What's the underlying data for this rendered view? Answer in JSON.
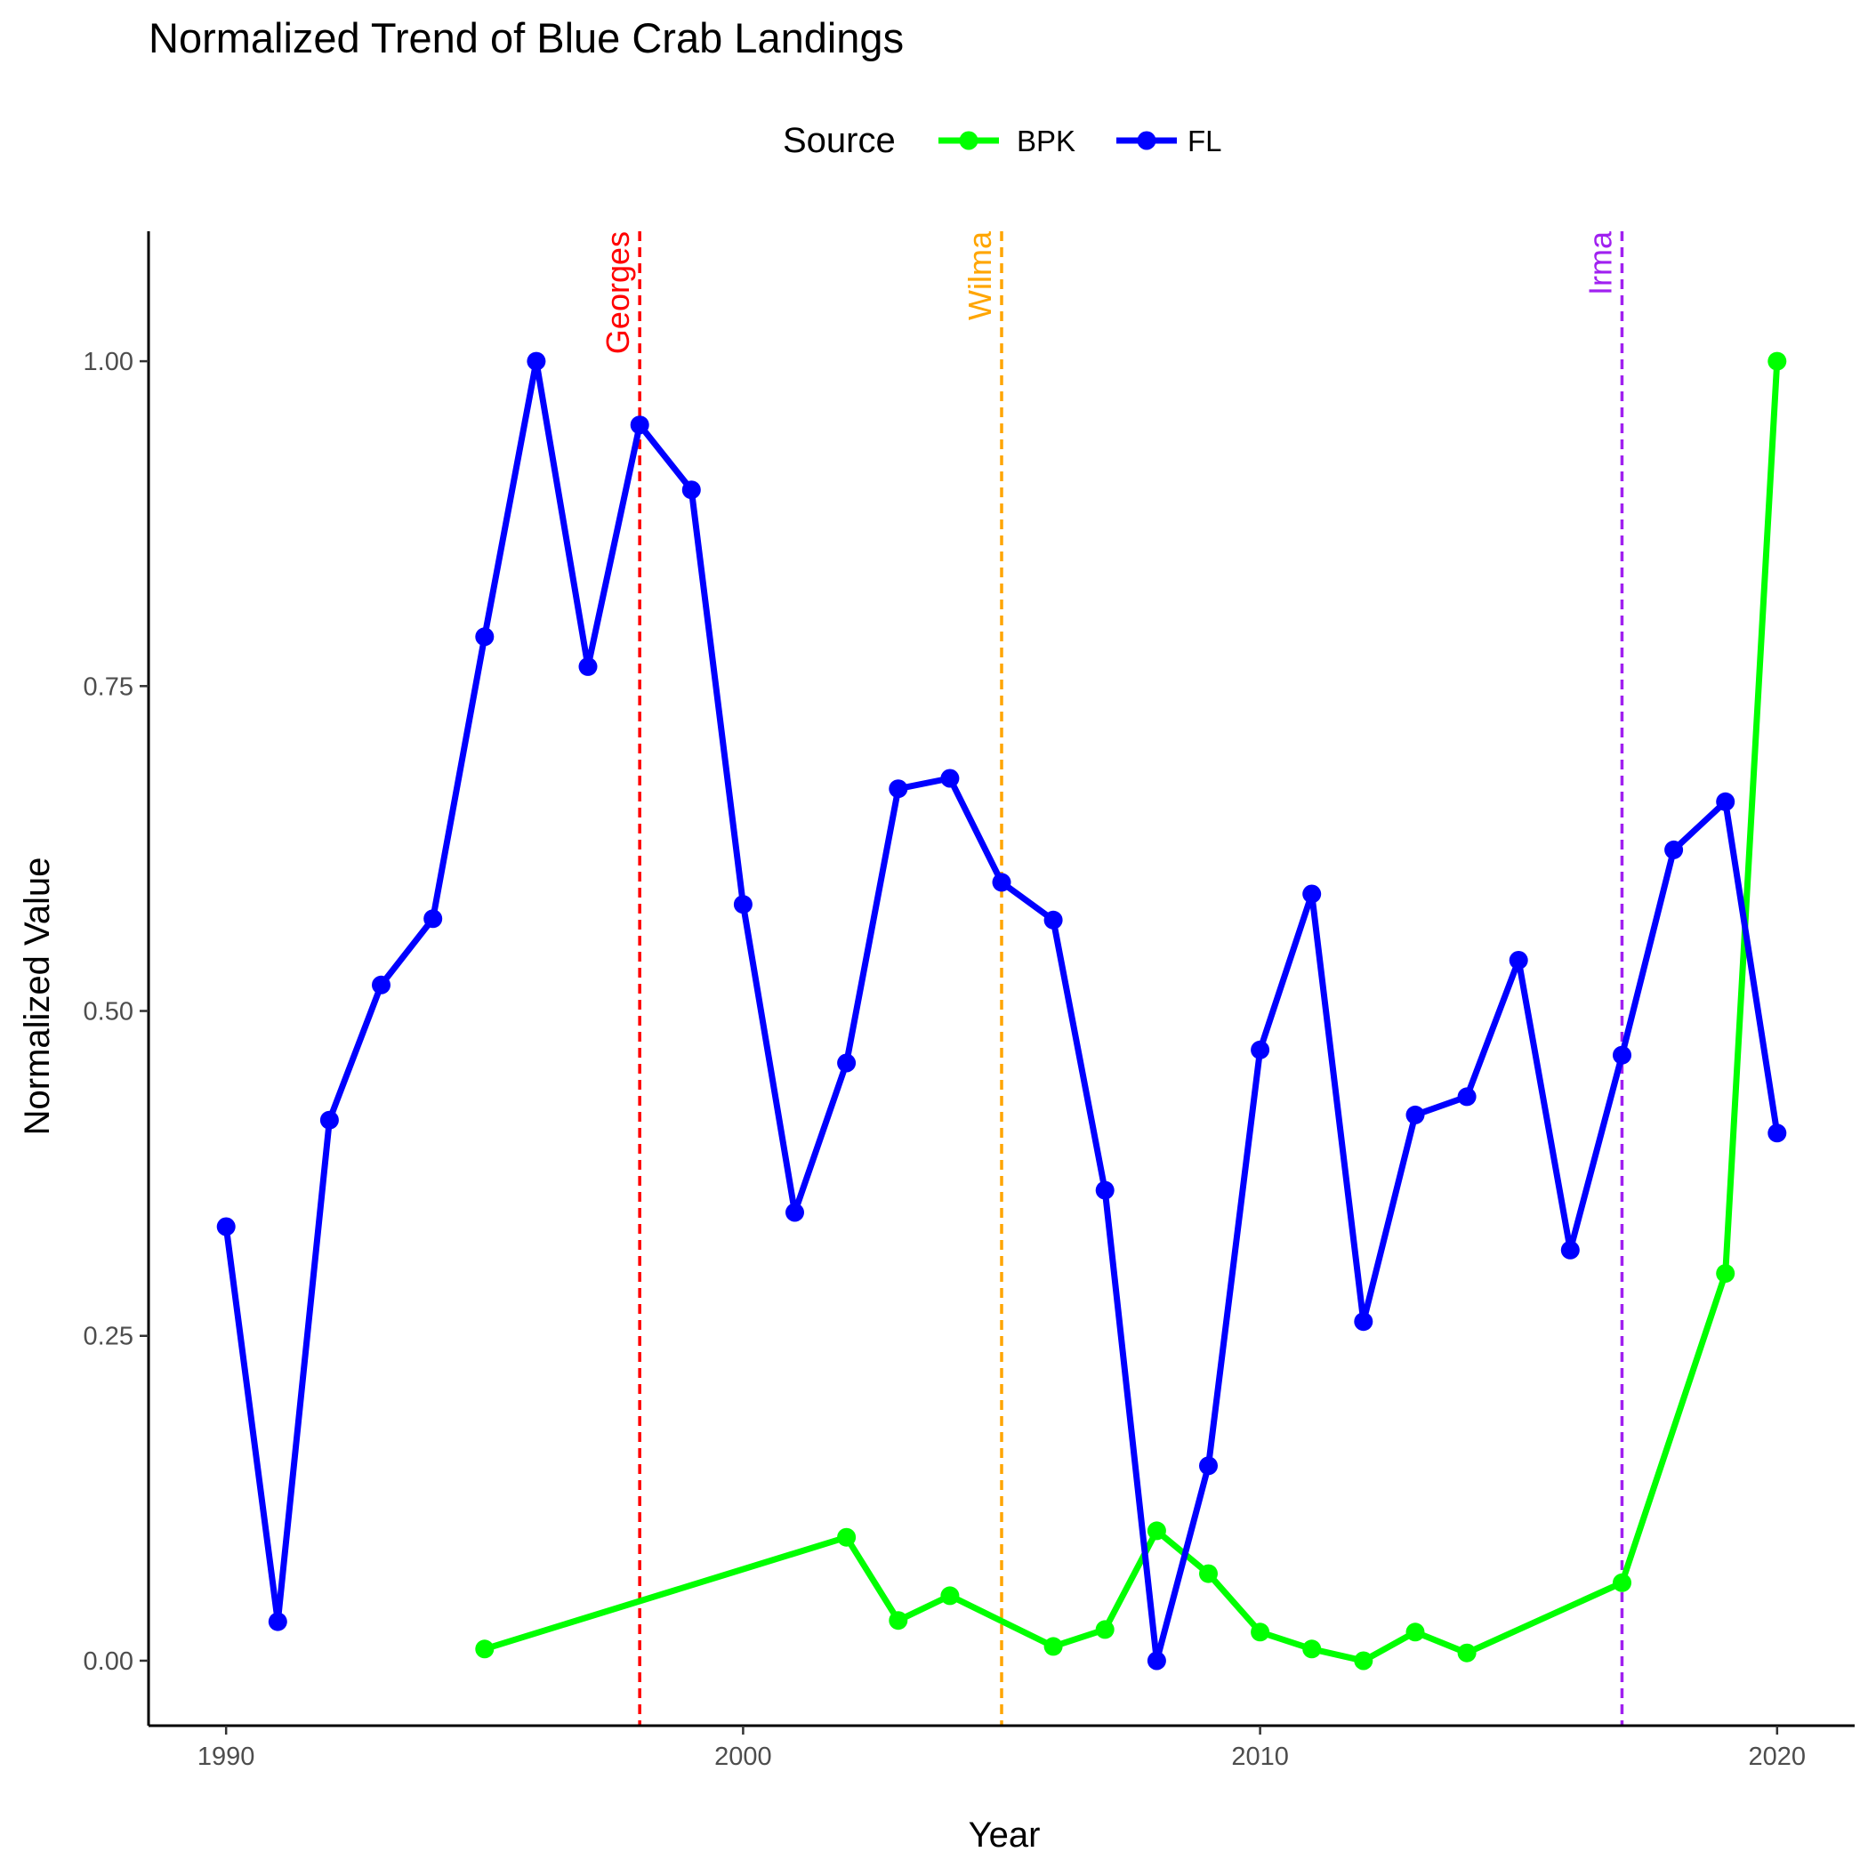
{
  "chart_data": {
    "type": "line",
    "title": "Normalized Trend of Blue Crab Landings",
    "xlabel": "Year",
    "ylabel": "Normalized Value",
    "xlim": [
      1988.5,
      2021.5
    ],
    "ylim": [
      -0.05,
      1.1
    ],
    "xticks": [
      1990,
      2000,
      2010,
      2020
    ],
    "yticks": [
      0,
      0.25,
      0.5,
      0.75,
      1
    ],
    "ytick_labels": [
      "0.00",
      "0.25",
      "0.50",
      "0.75",
      "1.00"
    ],
    "grid": false,
    "legend": {
      "title": "Source",
      "position": "top"
    },
    "series": [
      {
        "name": "BPK",
        "color": "#00ff00",
        "x": [
          1995,
          2002,
          2003,
          2004,
          2006,
          2007,
          2008,
          2009,
          2010,
          2011,
          2012,
          2013,
          2014,
          2017,
          2019,
          2020
        ],
        "y": [
          0.009,
          0.095,
          0.031,
          0.05,
          0.011,
          0.024,
          0.1,
          0.067,
          0.022,
          0.009,
          0.0,
          0.022,
          0.006,
          0.06,
          0.298,
          1.0
        ]
      },
      {
        "name": "FL",
        "color": "#0000ff",
        "x": [
          1990,
          1991,
          1992,
          1993,
          1994,
          1995,
          1996,
          1997,
          1998,
          1999,
          2000,
          2001,
          2002,
          2003,
          2004,
          2005,
          2006,
          2007,
          2008,
          2009,
          2010,
          2011,
          2012,
          2013,
          2014,
          2015,
          2016,
          2017,
          2018,
          2019,
          2020
        ],
        "y": [
          0.334,
          0.03,
          0.416,
          0.52,
          0.571,
          0.788,
          1.0,
          0.765,
          0.951,
          0.901,
          0.582,
          0.345,
          0.46,
          0.671,
          0.679,
          0.599,
          0.57,
          0.362,
          0.0,
          0.15,
          0.47,
          0.59,
          0.261,
          0.42,
          0.434,
          0.539,
          0.316,
          0.466,
          0.624,
          0.661,
          0.406
        ]
      }
    ],
    "events": [
      {
        "label": "Georges",
        "x": 1998,
        "color": "#ff0000"
      },
      {
        "label": "Wilma",
        "x": 2005,
        "color": "#ffa500"
      },
      {
        "label": "Irma",
        "x": 2017,
        "color": "#a020f0"
      }
    ]
  }
}
